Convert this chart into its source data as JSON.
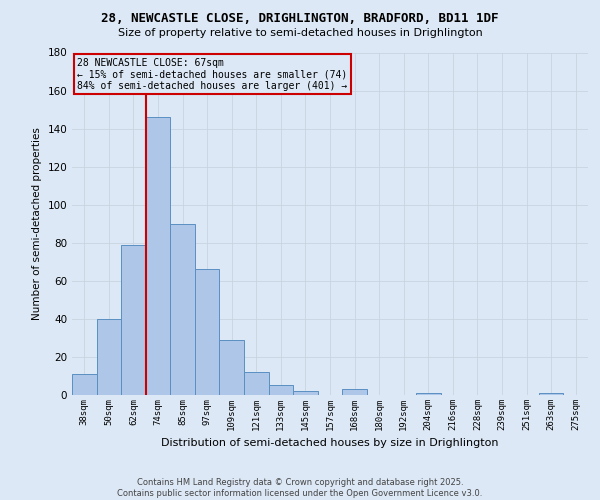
{
  "title1": "28, NEWCASTLE CLOSE, DRIGHLINGTON, BRADFORD, BD11 1DF",
  "title2": "Size of property relative to semi-detached houses in Drighlington",
  "xlabel": "Distribution of semi-detached houses by size in Drighlington",
  "ylabel": "Number of semi-detached properties",
  "categories": [
    "38sqm",
    "50sqm",
    "62sqm",
    "74sqm",
    "85sqm",
    "97sqm",
    "109sqm",
    "121sqm",
    "133sqm",
    "145sqm",
    "157sqm",
    "168sqm",
    "180sqm",
    "192sqm",
    "204sqm",
    "216sqm",
    "228sqm",
    "239sqm",
    "251sqm",
    "263sqm",
    "275sqm"
  ],
  "values": [
    11,
    40,
    79,
    146,
    90,
    66,
    29,
    12,
    5,
    2,
    0,
    3,
    0,
    0,
    1,
    0,
    0,
    0,
    0,
    1,
    0
  ],
  "bar_color": "#aec6e8",
  "bar_edge_color": "#5a8fc2",
  "grid_color": "#c8d4e0",
  "vline_color": "#cc0000",
  "annotation_title": "28 NEWCASTLE CLOSE: 67sqm",
  "annotation_line1": "← 15% of semi-detached houses are smaller (74)",
  "annotation_line2": "84% of semi-detached houses are larger (401) →",
  "annotation_box_color": "#cc0000",
  "ylim": [
    0,
    180
  ],
  "yticks": [
    0,
    20,
    40,
    60,
    80,
    100,
    120,
    140,
    160,
    180
  ],
  "footer1": "Contains HM Land Registry data © Crown copyright and database right 2025.",
  "footer2": "Contains public sector information licensed under the Open Government Licence v3.0.",
  "bg_color": "#dce8f5"
}
